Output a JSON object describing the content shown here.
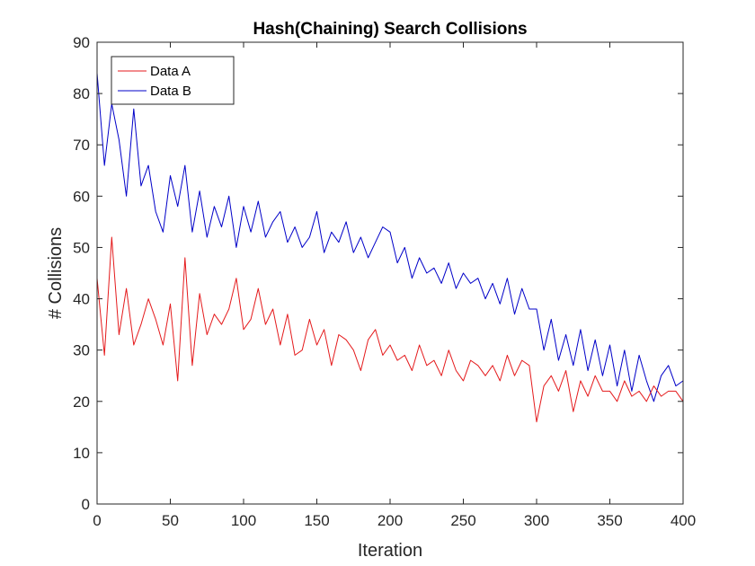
{
  "chart_data": {
    "type": "line",
    "title": "Hash(Chaining) Search Collisions",
    "xlabel": "Iteration",
    "ylabel": "# Collisions",
    "xlim": [
      0,
      400
    ],
    "ylim": [
      0,
      90
    ],
    "xticks": [
      0,
      50,
      100,
      150,
      200,
      250,
      300,
      350,
      400
    ],
    "yticks": [
      0,
      10,
      20,
      30,
      40,
      50,
      60,
      70,
      80,
      90
    ],
    "grid": false,
    "legend_position": "top-left",
    "series": [
      {
        "name": "Data A",
        "color": "#e41a1c",
        "x": [
          0,
          5,
          10,
          15,
          20,
          25,
          30,
          35,
          40,
          45,
          50,
          55,
          60,
          65,
          70,
          75,
          80,
          85,
          90,
          95,
          100,
          105,
          110,
          115,
          120,
          125,
          130,
          135,
          140,
          145,
          150,
          155,
          160,
          165,
          170,
          175,
          180,
          185,
          190,
          195,
          200,
          205,
          210,
          215,
          220,
          225,
          230,
          235,
          240,
          245,
          250,
          255,
          260,
          265,
          270,
          275,
          280,
          285,
          290,
          295,
          300,
          305,
          310,
          315,
          320,
          325,
          330,
          335,
          340,
          345,
          350,
          355,
          360,
          365,
          370,
          375,
          380,
          385,
          390,
          395,
          400
        ],
        "y": [
          44,
          29,
          52,
          33,
          42,
          31,
          35,
          40,
          36,
          31,
          39,
          24,
          48,
          27,
          41,
          33,
          37,
          35,
          38,
          44,
          34,
          36,
          42,
          35,
          38,
          31,
          37,
          29,
          30,
          36,
          31,
          34,
          27,
          33,
          32,
          30,
          26,
          32,
          34,
          29,
          31,
          28,
          29,
          26,
          31,
          27,
          28,
          25,
          30,
          26,
          24,
          28,
          27,
          25,
          27,
          24,
          29,
          25,
          28,
          27,
          16,
          23,
          25,
          22,
          26,
          18,
          24,
          21,
          25,
          22,
          22,
          20,
          24,
          21,
          22,
          20,
          23,
          21,
          22,
          22,
          20
        ]
      },
      {
        "name": "Data B",
        "color": "#0000c8",
        "x": [
          0,
          5,
          10,
          15,
          20,
          25,
          30,
          35,
          40,
          45,
          50,
          55,
          60,
          65,
          70,
          75,
          80,
          85,
          90,
          95,
          100,
          105,
          110,
          115,
          120,
          125,
          130,
          135,
          140,
          145,
          150,
          155,
          160,
          165,
          170,
          175,
          180,
          185,
          190,
          195,
          200,
          205,
          210,
          215,
          220,
          225,
          230,
          235,
          240,
          245,
          250,
          255,
          260,
          265,
          270,
          275,
          280,
          285,
          290,
          295,
          300,
          305,
          310,
          315,
          320,
          325,
          330,
          335,
          340,
          345,
          350,
          355,
          360,
          365,
          370,
          375,
          380,
          385,
          390,
          395,
          400
        ],
        "y": [
          84,
          66,
          78,
          71,
          60,
          77,
          62,
          66,
          57,
          53,
          64,
          58,
          66,
          53,
          61,
          52,
          58,
          54,
          60,
          50,
          58,
          53,
          59,
          52,
          55,
          57,
          51,
          54,
          50,
          52,
          57,
          49,
          53,
          51,
          55,
          49,
          52,
          48,
          51,
          54,
          53,
          47,
          50,
          44,
          48,
          45,
          46,
          43,
          47,
          42,
          45,
          43,
          44,
          40,
          43,
          39,
          44,
          37,
          42,
          38,
          38,
          30,
          36,
          28,
          33,
          27,
          34,
          26,
          32,
          25,
          31,
          23,
          30,
          22,
          29,
          24,
          20,
          25,
          27,
          23,
          24
        ]
      }
    ]
  }
}
